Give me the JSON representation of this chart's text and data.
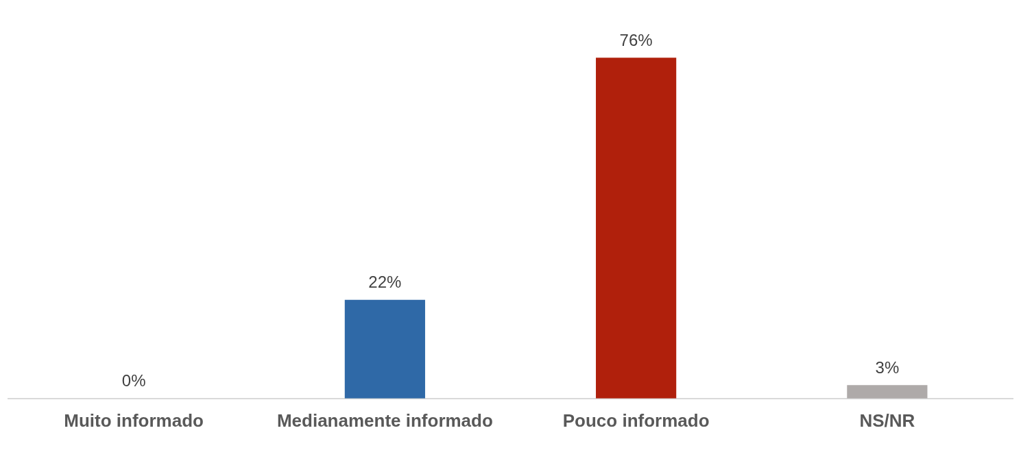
{
  "chart_data": {
    "type": "bar",
    "categories": [
      "Muito informado",
      "Medianamente informado",
      "Pouco informado",
      "NS/NR"
    ],
    "values": [
      0,
      22,
      76,
      3
    ],
    "colors": [
      "#2f69a7",
      "#2f69a7",
      "#b0200c",
      "#aeaaa9"
    ],
    "value_labels": [
      "0%",
      "22%",
      "76%",
      "3%"
    ],
    "grid": false,
    "legend": false
  }
}
